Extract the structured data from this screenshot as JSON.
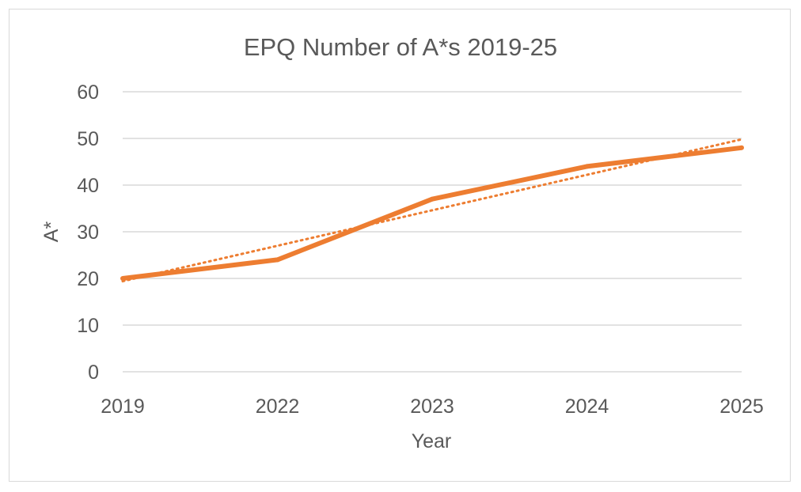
{
  "chart_data": {
    "type": "line",
    "title": "EPQ Number of A*s 2019-25",
    "xlabel": "Year",
    "ylabel": "A*",
    "categories": [
      "2019",
      "2022",
      "2023",
      "2024",
      "2025"
    ],
    "series": [
      {
        "values": [
          20,
          24,
          37,
          44,
          48
        ],
        "color": "#ed7d31",
        "style": "solid"
      }
    ],
    "trendline": {
      "type": "linear",
      "color": "#ed7d31",
      "style": "dotted"
    },
    "ylim": [
      0,
      60
    ],
    "yticks": [
      "0",
      "10",
      "20",
      "30",
      "40",
      "50",
      "60"
    ],
    "grid": true,
    "legend": "none"
  }
}
